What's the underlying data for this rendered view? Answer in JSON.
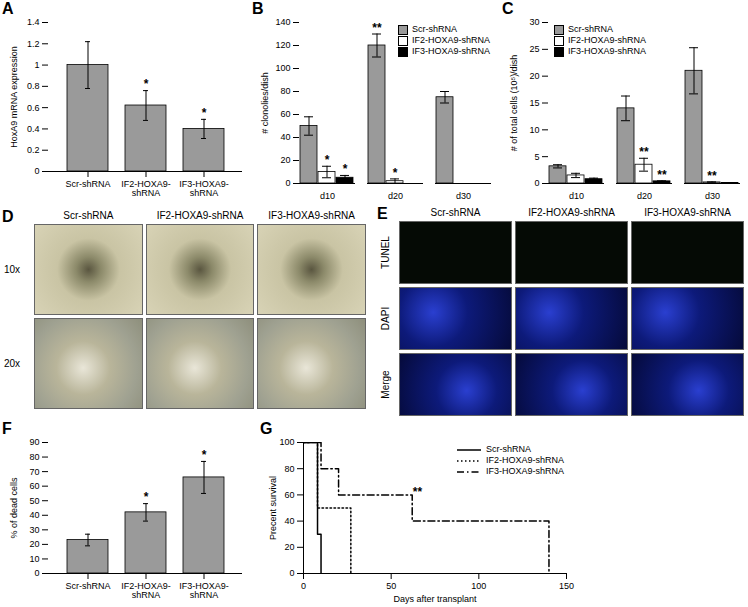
{
  "chart_data": [
    {
      "panel": "A",
      "type": "bar",
      "ylabel": "HoxA9 mRNA expression",
      "categories": [
        "Scr-shRNA",
        "IF2-HOXA9-shRNA",
        "IF3-HOXA9-shRNA"
      ],
      "values": [
        1.0,
        0.62,
        0.4
      ],
      "errors": [
        0.22,
        0.14,
        0.09
      ],
      "significance": [
        null,
        "*",
        "*"
      ],
      "color": "#9a9a9a",
      "ylim": [
        0,
        1.4
      ],
      "yticks": [
        0,
        0.2,
        0.4,
        0.6,
        0.8,
        1,
        1.2,
        1.4
      ]
    },
    {
      "panel": "B",
      "type": "bar",
      "ylabel": "# clonolies/dish",
      "legend": "top-right",
      "categories": [
        "d10",
        "d20",
        "d30"
      ],
      "series": [
        {
          "name": "Scr-shRNA",
          "color": "#9a9a9a",
          "values": [
            50,
            120,
            75
          ],
          "errors": [
            8,
            10,
            5
          ],
          "significance": [
            null,
            "**",
            null
          ]
        },
        {
          "name": "IF2-HOXA9-shRNA",
          "color": "#ffffff",
          "values": [
            10,
            2,
            0
          ],
          "errors": [
            5,
            2,
            0
          ],
          "significance": [
            "*",
            "*",
            null
          ]
        },
        {
          "name": "IF3-HOXA9-shRNA",
          "color": "#000000",
          "values": [
            5,
            0,
            0
          ],
          "errors": [
            2,
            0,
            0
          ],
          "significance": [
            "*",
            null,
            null
          ]
        }
      ],
      "ylim": [
        0,
        140
      ],
      "yticks": [
        0,
        20,
        40,
        60,
        80,
        100,
        120,
        140
      ]
    },
    {
      "panel": "C",
      "type": "bar",
      "ylabel": "# of total cells (10⁵)/dish",
      "legend": "top-left",
      "categories": [
        "d10",
        "d20",
        "d30"
      ],
      "series": [
        {
          "name": "Scr-shRNA",
          "color": "#9a9a9a",
          "values": [
            3.2,
            14,
            21
          ],
          "errors": [
            0.3,
            2.3,
            4.3
          ],
          "significance": [
            null,
            null,
            null
          ]
        },
        {
          "name": "IF2-HOXA9-shRNA",
          "color": "#ffffff",
          "values": [
            1.5,
            3.5,
            0.2
          ],
          "errors": [
            0.4,
            1.2,
            0.1
          ],
          "significance": [
            null,
            "**",
            "**"
          ]
        },
        {
          "name": "IF3-HOXA9-shRNA",
          "color": "#000000",
          "values": [
            0.8,
            0.4,
            0.1
          ],
          "errors": [
            0.2,
            0.1,
            0.05
          ],
          "significance": [
            null,
            "**",
            null
          ]
        }
      ],
      "ylim": [
        0,
        30
      ],
      "yticks": [
        0,
        5,
        10,
        15,
        20,
        25,
        30
      ]
    },
    {
      "panel": "F",
      "type": "bar",
      "ylabel": "% of dead cells",
      "categories": [
        "Scr-shRNA",
        "IF2-HOXA9-shRNA",
        "IF3-HOXA9-shRNA"
      ],
      "values": [
        23,
        42,
        66
      ],
      "errors": [
        4,
        6,
        11
      ],
      "significance": [
        null,
        "*",
        "*"
      ],
      "color": "#9a9a9a",
      "ylim": [
        0,
        90
      ],
      "yticks": [
        0,
        10,
        20,
        30,
        40,
        50,
        60,
        70,
        80,
        90
      ]
    },
    {
      "panel": "G",
      "type": "line",
      "xlabel": "Days after transplant",
      "ylabel": "Precent survival",
      "legend": "top-right",
      "series": [
        {
          "name": "Scr-shRNA",
          "color": "#000000",
          "line_style": "solid",
          "x": [
            0,
            8,
            10
          ],
          "values": [
            100,
            30,
            0
          ]
        },
        {
          "name": "IF2-HOXA9-shRNA",
          "color": "#000000",
          "line_style": "dotted",
          "x": [
            0,
            8,
            27
          ],
          "values": [
            100,
            50,
            0
          ]
        },
        {
          "name": "IF3-HOXA9-shRNA",
          "color": "#000000",
          "line_style": "dashdot",
          "x": [
            0,
            10,
            20,
            62,
            140
          ],
          "values": [
            100,
            80,
            60,
            40,
            0
          ]
        }
      ],
      "annotations": [
        {
          "text": "**",
          "x": 65,
          "y": 62
        }
      ],
      "xlim": [
        0,
        150
      ],
      "xticks": [
        0,
        50,
        100,
        150
      ],
      "ylim": [
        0,
        100
      ],
      "yticks": [
        0,
        20,
        40,
        60,
        80,
        100
      ]
    }
  ],
  "image_panels": [
    {
      "panel": "D",
      "columns": [
        "Scr-shRNA",
        "IF2-HOXA9-shRNA",
        "IF3-HOXA9-shRNA"
      ],
      "rows": [
        "10x",
        "20x"
      ]
    },
    {
      "panel": "E",
      "columns": [
        "Scr-shRNA",
        "IF2-HOXA9-shRNA",
        "IF3-HOXA9-shRNA"
      ],
      "rows": [
        "TUNEL",
        "DAPI",
        "Merge"
      ]
    }
  ]
}
